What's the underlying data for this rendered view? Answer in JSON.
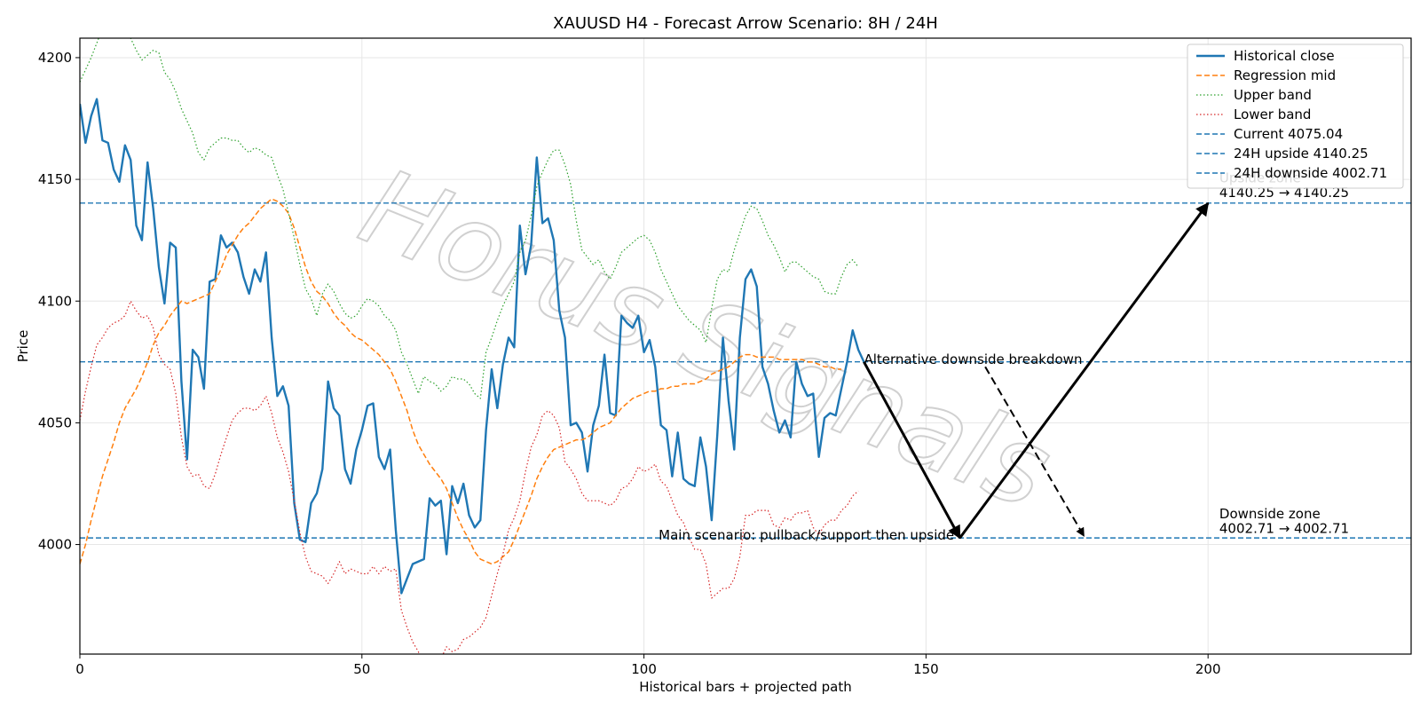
{
  "chart_data": {
    "type": "line",
    "title": "XAUUSD H4 - Forecast Arrow Scenario: 8H / 24H",
    "xlabel": "Historical bars + projected path",
    "ylabel": "Price",
    "xlim": [
      0,
      236
    ],
    "ylim": [
      3955,
      4208
    ],
    "x_ticks": [
      0,
      50,
      100,
      150,
      200
    ],
    "y_ticks": [
      4000,
      4050,
      4100,
      4150,
      4200
    ],
    "grid": true,
    "legend_position": "top-right",
    "watermark": "Horus Signals",
    "colors": {
      "historical": "#1f77b4",
      "regression": "#ff7f0e",
      "upper": "#2ca02c",
      "lower": "#d62728",
      "levels": "#1f77b4",
      "arrows": "#000000"
    },
    "series": [
      {
        "name": "Historical close",
        "style": "solid",
        "x_start": 0,
        "values": [
          4181,
          4165,
          4176,
          4183,
          4166,
          4165,
          4154,
          4149,
          4164,
          4158,
          4131,
          4125,
          4157,
          4138,
          4114,
          4099,
          4124,
          4122,
          4067,
          4035,
          4080,
          4077,
          4064,
          4108,
          4109,
          4127,
          4122,
          4124,
          4120,
          4110,
          4103,
          4113,
          4108,
          4120,
          4085,
          4061,
          4065,
          4057,
          4017,
          4002,
          4001,
          4017,
          4021,
          4031,
          4067,
          4056,
          4053,
          4031,
          4025,
          4039,
          4047,
          4057,
          4058,
          4036,
          4031,
          4039,
          4006,
          3980,
          3986,
          3992,
          3993,
          3994,
          4019,
          4016,
          4018,
          3996,
          4024,
          4017,
          4025,
          4012,
          4007,
          4010,
          4047,
          4072,
          4056,
          4074,
          4085,
          4081,
          4131,
          4111,
          4123,
          4159,
          4132,
          4134,
          4125,
          4096,
          4085,
          4049,
          4050,
          4046,
          4030,
          4049,
          4057,
          4078,
          4054,
          4053,
          4094,
          4091,
          4089,
          4094,
          4079,
          4084,
          4073,
          4049,
          4047,
          4028,
          4046,
          4027,
          4025,
          4024,
          4044,
          4032,
          4010,
          4045,
          4085,
          4059,
          4039,
          4085,
          4109,
          4113,
          4106,
          4073,
          4066,
          4055,
          4046,
          4051,
          4044,
          4075,
          4066,
          4061,
          4062,
          4036,
          4052,
          4054,
          4053,
          4064,
          4075,
          4088,
          4080,
          4075
        ]
      },
      {
        "name": "Regression mid",
        "style": "dashed",
        "x_start": 0,
        "values": [
          3992,
          4000,
          4010,
          4019,
          4028,
          4035,
          4042,
          4050,
          4056,
          4060,
          4064,
          4069,
          4075,
          4082,
          4087,
          4090,
          4094,
          4097,
          4100,
          4099,
          4100,
          4101,
          4102,
          4103,
          4108,
          4113,
          4119,
          4123,
          4127,
          4130,
          4132,
          4135,
          4138,
          4140,
          4142,
          4141,
          4139,
          4136,
          4130,
          4122,
          4114,
          4108,
          4104,
          4102,
          4099,
          4095,
          4092,
          4090,
          4087,
          4085,
          4084,
          4082,
          4080,
          4078,
          4075,
          4072,
          4067,
          4061,
          4055,
          4047,
          4041,
          4037,
          4033,
          4030,
          4027,
          4023,
          4017,
          4011,
          4006,
          4002,
          3997,
          3994,
          3993,
          3992,
          3993,
          3995,
          3997,
          4002,
          4008,
          4014,
          4020,
          4027,
          4032,
          4036,
          4039,
          4040,
          4041,
          4042,
          4043,
          4043,
          4044,
          4046,
          4048,
          4049,
          4050,
          4053,
          4056,
          4058,
          4060,
          4061,
          4062,
          4063,
          4063,
          4064,
          4064,
          4065,
          4065,
          4066,
          4066,
          4066,
          4067,
          4068,
          4070,
          4071,
          4072,
          4073,
          4075,
          4077,
          4078,
          4078,
          4077,
          4077,
          4077,
          4077,
          4076,
          4076,
          4076,
          4076,
          4076,
          4075,
          4075,
          4074,
          4073,
          4073,
          4072,
          4072
        ]
      },
      {
        "name": "Upper band",
        "style": "dotted",
        "x_start": 0,
        "values": [
          4190,
          4195,
          4200,
          4206,
          4212,
          4215,
          4214,
          4213,
          4211,
          4208,
          4203,
          4199,
          4201,
          4203,
          4202,
          4194,
          4191,
          4186,
          4179,
          4174,
          4169,
          4161,
          4158,
          4163,
          4165,
          4167,
          4167,
          4166,
          4166,
          4163,
          4161,
          4163,
          4162,
          4160,
          4159,
          4152,
          4146,
          4136,
          4126,
          4115,
          4105,
          4101,
          4094,
          4103,
          4107,
          4104,
          4099,
          4095,
          4093,
          4094,
          4098,
          4101,
          4100,
          4098,
          4094,
          4092,
          4088,
          4079,
          4074,
          4068,
          4062,
          4069,
          4067,
          4066,
          4063,
          4065,
          4069,
          4068,
          4068,
          4066,
          4062,
          4060,
          4079,
          4085,
          4092,
          4098,
          4103,
          4108,
          4120,
          4125,
          4135,
          4147,
          4153,
          4158,
          4162,
          4162,
          4156,
          4148,
          4133,
          4121,
          4118,
          4115,
          4117,
          4112,
          4109,
          4114,
          4120,
          4122,
          4124,
          4126,
          4127,
          4125,
          4120,
          4113,
          4108,
          4103,
          4098,
          4095,
          4092,
          4090,
          4088,
          4083,
          4097,
          4109,
          4113,
          4112,
          4121,
          4128,
          4135,
          4139,
          4138,
          4133,
          4127,
          4123,
          4118,
          4112,
          4116,
          4116,
          4114,
          4112,
          4110,
          4109,
          4104,
          4103,
          4103,
          4110,
          4115,
          4117,
          4114
        ]
      },
      {
        "name": "Lower band",
        "style": "dotted",
        "x_start": 0,
        "values": [
          4051,
          4063,
          4073,
          4082,
          4085,
          4089,
          4091,
          4092,
          4094,
          4100,
          4096,
          4093,
          4094,
          4089,
          4078,
          4074,
          4072,
          4062,
          4044,
          4032,
          4028,
          4029,
          4024,
          4023,
          4029,
          4037,
          4044,
          4051,
          4054,
          4056,
          4056,
          4055,
          4057,
          4061,
          4054,
          4044,
          4038,
          4030,
          4018,
          4005,
          3995,
          3989,
          3988,
          3987,
          3984,
          3988,
          3993,
          3988,
          3990,
          3989,
          3988,
          3988,
          3991,
          3988,
          3991,
          3989,
          3990,
          3973,
          3966,
          3960,
          3956,
          3950,
          3946,
          3949,
          3953,
          3958,
          3956,
          3957,
          3961,
          3962,
          3964,
          3966,
          3970,
          3979,
          3988,
          3996,
          4006,
          4011,
          4018,
          4030,
          4040,
          4045,
          4053,
          4055,
          4053,
          4048,
          4034,
          4031,
          4027,
          4021,
          4018,
          4018,
          4018,
          4017,
          4016,
          4018,
          4023,
          4024,
          4027,
          4032,
          4030,
          4031,
          4033,
          4026,
          4024,
          4018,
          4012,
          4009,
          4003,
          3998,
          3998,
          3992,
          3978,
          3980,
          3982,
          3982,
          3986,
          3995,
          4012,
          4012,
          4014,
          4014,
          4014,
          4008,
          4007,
          4011,
          4010,
          4013,
          4013,
          4014,
          4007,
          4004,
          4008,
          4010,
          4010,
          4014,
          4016,
          4020,
          4022
        ]
      }
    ],
    "levels": [
      {
        "name": "Current 4075.04",
        "y": 4075.04
      },
      {
        "name": "24H upside 4140.25",
        "y": 4140.25
      },
      {
        "name": "24H downside 4002.71",
        "y": 4002.71
      }
    ],
    "scenario_arrows": [
      {
        "from": [
          139,
          4075
        ],
        "to": [
          156,
          4002.7
        ],
        "style": "solid"
      },
      {
        "from": [
          156,
          4002.7
        ],
        "to": [
          200,
          4140.2
        ],
        "style": "solid"
      },
      {
        "from": [
          160.5,
          4073
        ],
        "to": [
          178,
          4003.5
        ],
        "style": "dashed"
      }
    ],
    "annotations": [
      {
        "text": "Alternative downside breakdown",
        "x": 139,
        "y": 4075,
        "anchor": "start"
      },
      {
        "text": "Main scenario: pullback/support then upside",
        "x": 155,
        "y": 4002.7,
        "anchor": "end"
      },
      {
        "text": "Upside zone",
        "x": 202,
        "y": 4149.5,
        "anchor": "start"
      },
      {
        "text": "4140.25 → 4140.25",
        "x": 202,
        "y": 4143.5,
        "anchor": "start"
      },
      {
        "text": "Downside zone",
        "x": 202,
        "y": 4011.5,
        "anchor": "start"
      },
      {
        "text": "4002.71 → 4002.71",
        "x": 202,
        "y": 4005.5,
        "anchor": "start"
      }
    ]
  }
}
